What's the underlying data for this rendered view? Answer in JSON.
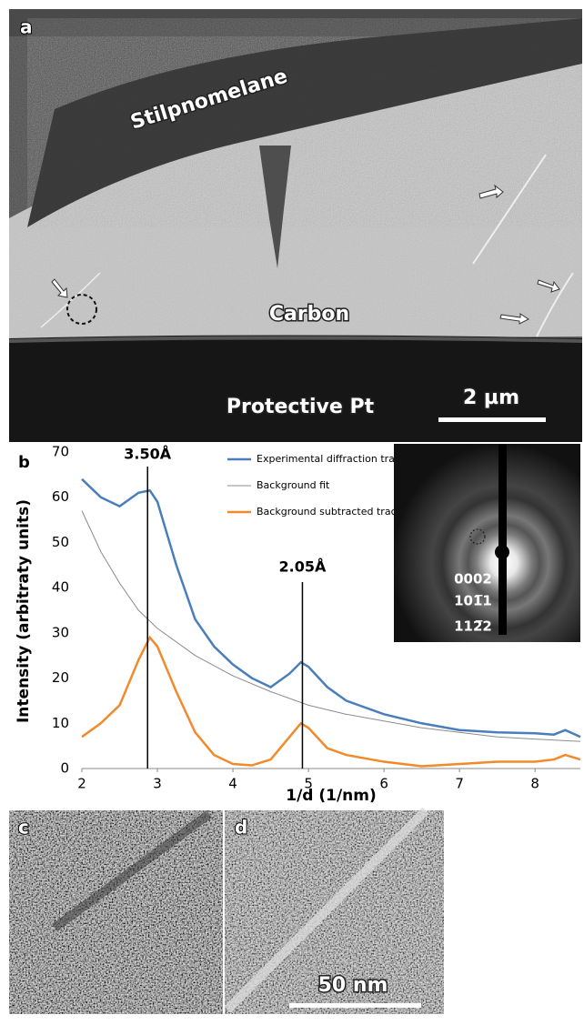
{
  "panel_a": {
    "label": "a",
    "texts": [
      "Stilpnomelane",
      "Carbon",
      "Protective Pt"
    ],
    "scale_bar": "2 µm"
  },
  "chart_data": {
    "type": "line",
    "panel_label": "b",
    "x_label": "1/d (1/nm)",
    "y_label": "Intensity (arbitraty units)",
    "xlim": [
      2,
      8.6
    ],
    "ylim": [
      0,
      70
    ],
    "xticks": [
      2,
      3,
      4,
      5,
      6,
      7,
      8
    ],
    "yticks": [
      0,
      10,
      20,
      30,
      40,
      50,
      60,
      70
    ],
    "series": [
      {
        "name": "Experimental diffraction trace",
        "color": "#4a7ebb",
        "x": [
          2,
          2.25,
          2.5,
          2.75,
          2.9,
          3.0,
          3.25,
          3.5,
          3.75,
          4,
          4.25,
          4.5,
          4.75,
          4.9,
          5.0,
          5.25,
          5.5,
          5.75,
          6,
          6.5,
          7,
          7.5,
          8,
          8.25,
          8.4,
          8.6
        ],
        "values": [
          64,
          60,
          58,
          61,
          61.5,
          59,
          45,
          33,
          27,
          23,
          20,
          18,
          21,
          23.5,
          22.5,
          18,
          15,
          13.5,
          12,
          10,
          8.5,
          8,
          7.8,
          7.5,
          8.5,
          7
        ]
      },
      {
        "name": "Background fit",
        "color": "#8c8c8c",
        "x": [
          2,
          2.25,
          2.5,
          2.75,
          3,
          3.5,
          4,
          4.5,
          5,
          5.5,
          6,
          6.5,
          7,
          7.5,
          8,
          8.6
        ],
        "values": [
          57,
          48,
          41,
          35,
          31,
          25,
          20.5,
          17,
          14,
          12,
          10.5,
          9,
          8,
          7,
          6.5,
          6
        ]
      },
      {
        "name": "Background subtracted trace",
        "color": "#f08a2c",
        "x": [
          2,
          2.25,
          2.5,
          2.75,
          2.9,
          3.0,
          3.25,
          3.5,
          3.75,
          4,
          4.25,
          4.5,
          4.75,
          4.9,
          5.0,
          5.25,
          5.5,
          6,
          6.5,
          7,
          7.5,
          8,
          8.25,
          8.4,
          8.6
        ],
        "values": [
          7,
          10,
          14,
          24,
          29,
          27,
          17,
          8,
          3,
          1,
          0.7,
          2,
          7,
          10,
          9,
          4.5,
          3,
          1.5,
          0.5,
          1,
          1.5,
          1.5,
          2,
          3,
          2
        ]
      }
    ],
    "annotations": [
      {
        "text": "3.50Å",
        "x": 2.87
      },
      {
        "text": "2.05Å",
        "x": 4.92
      }
    ],
    "inset_labels": [
      "0002",
      "101̅1",
      "112̅2"
    ]
  },
  "panel_c": {
    "label": "c"
  },
  "panel_d": {
    "label": "d",
    "scale_bar": "50 nm"
  }
}
